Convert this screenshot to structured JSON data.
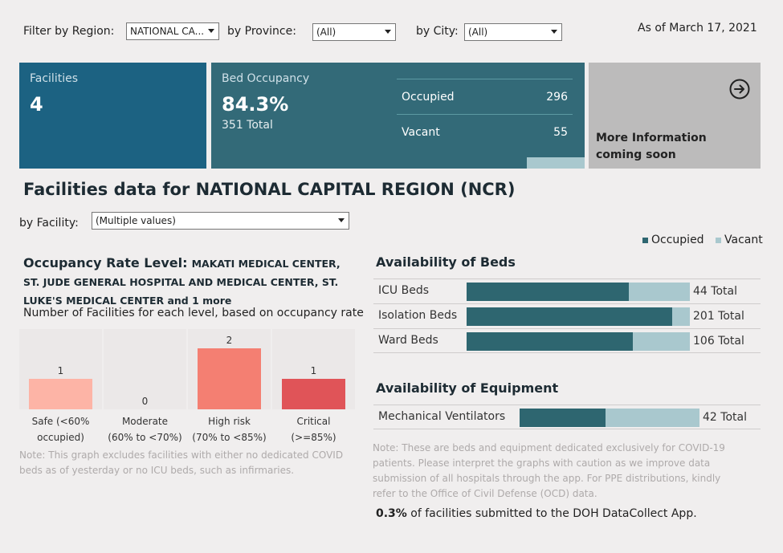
{
  "filters": {
    "region_label": "Filter by Region:",
    "region_value": "NATIONAL CA...",
    "province_label": "by Province:",
    "province_value": "(All)",
    "city_label": "by City:",
    "city_value": "(All)",
    "as_of": "As of March 17, 2021"
  },
  "cards": {
    "facilities_title": "Facilities",
    "facilities_value": "4",
    "occupancy_title": "Bed Occupancy",
    "occupancy_value": "84.3%",
    "occupancy_total": "351 Total",
    "occupied_label": "Occupied",
    "occupied_value": "296",
    "vacant_label": "Vacant",
    "vacant_value": "55",
    "more_info": "More Information coming soon"
  },
  "main": {
    "heading": "Facilities data for NATIONAL CAPITAL REGION (NCR)",
    "facility_label": "by Facility:",
    "facility_value": "(Multiple values)"
  },
  "occupancy": {
    "title_bold": "Occupancy Rate Level:",
    "title_facilities": "MAKATI MEDICAL CENTER, ST. JUDE GENERAL HOSPITAL AND MEDICAL CENTER, ST. LUKE'S MEDICAL CENTER and 1 more",
    "subtitle": "Number of Facilities for each level, based on occupancy rate",
    "note": "Note: This graph excludes facilities with either no dedicated COVID beds as of yesterday or no ICU beds, such as infirmaries."
  },
  "legend": {
    "occupied": "Occupied",
    "vacant": "Vacant"
  },
  "availability": {
    "beds_title": "Availability of Beds",
    "equipment_title": "Availability of Equipment",
    "note": "Note: These are beds and equipment dedicated exclusively for COVID-19 patients. Please interpret the graphs with caution as we improve data submission of all hospitals through the app. For PPE distributions, kindly refer to the Office of Civil Defense (OCD) data.",
    "submitted_pct": "0.3%",
    "submitted_text": " of facilities submitted to the DOH DataCollect App."
  },
  "colors": {
    "occupied": "#2e6670",
    "vacant": "#a9c8ce",
    "safe": "#fdb4a6",
    "high_risk": "#f47f72",
    "critical": "#e05458"
  },
  "chart_data": [
    {
      "type": "bar",
      "categories": [
        "Safe (<60% occupied)",
        "Moderate (60% to <70%)",
        "High risk (70% to <85%)",
        "Critical (>=85%)"
      ],
      "values": [
        1,
        0,
        2,
        1
      ],
      "ylim": [
        0,
        2
      ]
    },
    {
      "type": "bar",
      "orientation": "horizontal-stacked",
      "categories": [
        "ICU Beds",
        "Isolation Beds",
        "Ward Beds"
      ],
      "series": [
        {
          "name": "Occupied",
          "values": [
            32,
            185,
            79
          ]
        },
        {
          "name": "Vacant",
          "values": [
            12,
            16,
            27
          ]
        }
      ],
      "totals": [
        "44 Total",
        "201 Total",
        "106 Total"
      ]
    },
    {
      "type": "bar",
      "orientation": "horizontal-stacked",
      "categories": [
        "Mechanical Ventilators"
      ],
      "series": [
        {
          "name": "Occupied",
          "values": [
            20
          ]
        },
        {
          "name": "Vacant",
          "values": [
            22
          ]
        }
      ],
      "totals": [
        "42 Total"
      ]
    }
  ]
}
